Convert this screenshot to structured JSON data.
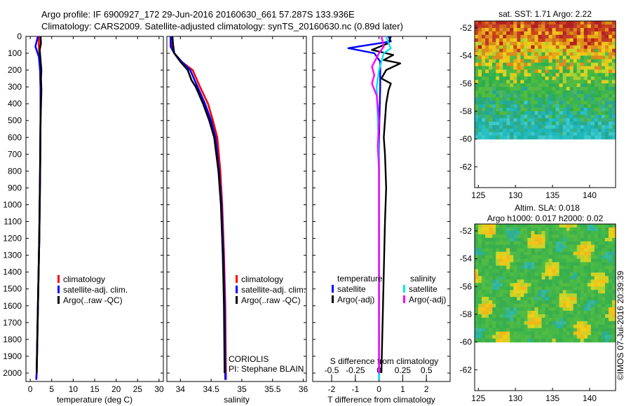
{
  "header": {
    "line1": "Argo profile: IF 6900927_172 29-Jun-2016 20160630_661 57.287S 133.936E",
    "line2": "Climatology: CARS2009. Satellite-adjusted climatology: synTS_20160630.nc (0.89d later)"
  },
  "footer_credit": "©IMOS 07-Jul-2016 20:39:39",
  "colors": {
    "climatology": "#ff0000",
    "satellite": "#0000ff",
    "argo": "#000000",
    "salinity_satellite": "#00e5ee",
    "salinity_argo": "#ff00ff"
  },
  "chart_data": [
    {
      "type": "line",
      "panel": "temperature",
      "xlabel": "temperature (deg C)",
      "xticks": [
        "0",
        "5",
        "10",
        "15",
        "20",
        "25",
        "30"
      ],
      "xlim": [
        -1,
        31
      ],
      "ylim": [
        2050,
        0
      ],
      "yticks": [
        "0",
        "100",
        "200",
        "300",
        "400",
        "500",
        "600",
        "700",
        "800",
        "900",
        "1000",
        "1100",
        "1200",
        "1300",
        "1400",
        "1500",
        "1600",
        "1700",
        "1800",
        "1900",
        "2000"
      ],
      "legend": [
        "climatology",
        "satellite-adj. clim.",
        "Argo(..raw -QC)"
      ],
      "series": [
        {
          "name": "climatology",
          "color": "#ff0000",
          "points": [
            [
              2.0,
              0
            ],
            [
              2.0,
              60
            ],
            [
              2.2,
              120
            ],
            [
              2.3,
              200
            ],
            [
              2.4,
              300
            ],
            [
              2.4,
              500
            ],
            [
              2.3,
              800
            ],
            [
              2.1,
              1200
            ],
            [
              1.8,
              1600
            ],
            [
              1.5,
              2000
            ],
            [
              1.4,
              2040
            ]
          ]
        },
        {
          "name": "satellite-adj. clim.",
          "color": "#0000ff",
          "points": [
            [
              1.8,
              0
            ],
            [
              1.2,
              60
            ],
            [
              2.0,
              120
            ],
            [
              2.3,
              200
            ],
            [
              2.4,
              300
            ],
            [
              2.4,
              500
            ],
            [
              2.3,
              800
            ],
            [
              2.1,
              1200
            ],
            [
              1.8,
              1600
            ],
            [
              1.5,
              2000
            ],
            [
              1.4,
              2040
            ]
          ]
        },
        {
          "name": "Argo(..raw -QC)",
          "color": "#000000",
          "points": [
            [
              2.4,
              0
            ],
            [
              2.5,
              40
            ],
            [
              2.2,
              80
            ],
            [
              2.4,
              140
            ],
            [
              2.6,
              200
            ],
            [
              2.5,
              250
            ],
            [
              2.6,
              320
            ],
            [
              2.4,
              500
            ],
            [
              2.3,
              800
            ],
            [
              2.1,
              1200
            ],
            [
              1.8,
              1600
            ],
            [
              1.5,
              2000
            ]
          ]
        }
      ]
    },
    {
      "type": "line",
      "panel": "salinity",
      "xlabel": "salinity",
      "xticks": [
        "34",
        "34.5",
        "35",
        "35.5",
        "36"
      ],
      "xtick_values": [
        34,
        34.5,
        35,
        35.5,
        36
      ],
      "xlim": [
        33.78,
        36.05
      ],
      "ylim": [
        2050,
        0
      ],
      "legend": [
        "climatology",
        "satellite-adj. clim.",
        "Argo(..raw -QC)"
      ],
      "annotation": [
        "CORIOLIS",
        "PI: Stephane BLAIN"
      ],
      "series": [
        {
          "name": "climatology",
          "color": "#ff0000",
          "points": [
            [
              33.85,
              0
            ],
            [
              33.86,
              60
            ],
            [
              33.9,
              100
            ],
            [
              34.02,
              150
            ],
            [
              34.2,
              200
            ],
            [
              34.32,
              300
            ],
            [
              34.45,
              400
            ],
            [
              34.53,
              500
            ],
            [
              34.6,
              600
            ],
            [
              34.65,
              800
            ],
            [
              34.68,
              1000
            ],
            [
              34.71,
              1300
            ],
            [
              34.73,
              1600
            ],
            [
              34.74,
              2000
            ],
            [
              34.74,
              2040
            ]
          ]
        },
        {
          "name": "satellite-adj. clim.",
          "color": "#0000ff",
          "points": [
            [
              33.84,
              0
            ],
            [
              33.84,
              60
            ],
            [
              33.9,
              100
            ],
            [
              34.02,
              150
            ],
            [
              34.16,
              200
            ],
            [
              34.28,
              300
            ],
            [
              34.4,
              400
            ],
            [
              34.5,
              500
            ],
            [
              34.57,
              600
            ],
            [
              34.63,
              800
            ],
            [
              34.67,
              1000
            ],
            [
              34.7,
              1300
            ],
            [
              34.72,
              1600
            ],
            [
              34.73,
              2000
            ],
            [
              34.73,
              2040
            ]
          ]
        },
        {
          "name": "Argo(..raw -QC)",
          "color": "#000000",
          "points": [
            [
              33.87,
              0
            ],
            [
              33.88,
              50
            ],
            [
              33.9,
              100
            ],
            [
              34.0,
              150
            ],
            [
              34.12,
              200
            ],
            [
              34.18,
              260
            ],
            [
              34.25,
              300
            ],
            [
              34.37,
              400
            ],
            [
              34.47,
              500
            ],
            [
              34.55,
              600
            ],
            [
              34.62,
              800
            ],
            [
              34.66,
              1000
            ],
            [
              34.69,
              1300
            ],
            [
              34.71,
              1600
            ],
            [
              34.72,
              2000
            ]
          ]
        }
      ]
    },
    {
      "type": "line",
      "panel": "difference",
      "xlabel": "T difference from climatology",
      "xlabel_top": "S difference from climatology",
      "xticks": [
        "-2",
        "-1",
        "0",
        "1",
        "2"
      ],
      "xticks_top": [
        "-0.5",
        "-0.25",
        "0",
        "0.25",
        "0.5"
      ],
      "xlim": [
        -2.8,
        3.0
      ],
      "ylim": [
        2050,
        0
      ],
      "legend_titles": [
        "temperature",
        "salinity"
      ],
      "legend": [
        "satellite",
        "Argo(-adj)",
        "satellite",
        "Argo(-adj)"
      ],
      "series": [
        {
          "name": "temperature satellite",
          "color": "#0000ff",
          "points": [
            [
              0.4,
              0
            ],
            [
              0.5,
              30
            ],
            [
              -1.3,
              70
            ],
            [
              -0.2,
              100
            ],
            [
              0.05,
              150
            ],
            [
              0.05,
              300
            ],
            [
              0.0,
              600
            ],
            [
              0.0,
              1000
            ],
            [
              0.0,
              1500
            ],
            [
              0.0,
              2000
            ],
            [
              0.0,
              2040
            ]
          ]
        },
        {
          "name": "temperature Argo(-adj)",
          "color": "#000000",
          "points": [
            [
              0.5,
              0
            ],
            [
              0.4,
              40
            ],
            [
              -0.3,
              80
            ],
            [
              0.6,
              110
            ],
            [
              0.2,
              140
            ],
            [
              0.9,
              160
            ],
            [
              0.3,
              200
            ],
            [
              0.1,
              250
            ],
            [
              0.5,
              280
            ],
            [
              0.4,
              320
            ],
            [
              0.3,
              400
            ],
            [
              0.2,
              600
            ],
            [
              0.25,
              700
            ],
            [
              0.3,
              900
            ],
            [
              0.25,
              1100
            ],
            [
              0.2,
              1400
            ],
            [
              0.15,
              1700
            ],
            [
              0.1,
              2000
            ]
          ]
        },
        {
          "name": "salinity satellite",
          "color": "#00e5ee",
          "points": [
            [
              0.3,
              0
            ],
            [
              0.4,
              40
            ],
            [
              0.5,
              70
            ],
            [
              0.2,
              100
            ],
            [
              0.0,
              200
            ],
            [
              -0.1,
              300
            ],
            [
              -0.05,
              500
            ],
            [
              0.0,
              700
            ],
            [
              0.0,
              1000
            ],
            [
              0.0,
              1500
            ],
            [
              0.0,
              2000
            ],
            [
              0.0,
              2040
            ]
          ]
        },
        {
          "name": "salinity Argo(-adj)",
          "color": "#ff00ff",
          "points": [
            [
              0.1,
              0
            ],
            [
              0.2,
              60
            ],
            [
              0.0,
              100
            ],
            [
              -0.3,
              180
            ],
            [
              -0.2,
              230
            ],
            [
              -0.3,
              280
            ],
            [
              -0.1,
              350
            ],
            [
              0.0,
              500
            ],
            [
              -0.05,
              650
            ],
            [
              0.0,
              800
            ],
            [
              0.0,
              1200
            ],
            [
              0.0,
              2000
            ]
          ]
        }
      ]
    },
    {
      "type": "heatmap",
      "panel": "sst_map",
      "title": "sat. SST: 1.71  Argo: 2.22",
      "xticks": [
        "125",
        "130",
        "135",
        "140"
      ],
      "xtick_values": [
        125,
        130,
        135,
        140
      ],
      "yticks": [
        "-52",
        "-54",
        "-56",
        "-58",
        "-60",
        "-62"
      ],
      "ytick_values": [
        -52,
        -54,
        -56,
        -58,
        -60,
        -62
      ],
      "xlim": [
        124.5,
        143.5
      ],
      "ylim": [
        -63.5,
        -51.5
      ],
      "data_extent_lat": [
        -60,
        -51.5
      ]
    },
    {
      "type": "heatmap",
      "panel": "sla_map",
      "title": "Altim. SLA: 0.018",
      "subtitle": "Argo h1000: 0.017  h2000: 0.02",
      "xticks": [
        "125",
        "130",
        "135",
        "140"
      ],
      "xtick_values": [
        125,
        130,
        135,
        140
      ],
      "yticks": [
        "-52",
        "-54",
        "-56",
        "-58",
        "-60",
        "-62"
      ],
      "ytick_values": [
        -52,
        -54,
        -56,
        -58,
        -60,
        -62
      ],
      "xlim": [
        124.5,
        143.5
      ],
      "ylim": [
        -63.5,
        -51.5
      ],
      "data_extent_lat": [
        -60,
        -51.5
      ]
    }
  ]
}
